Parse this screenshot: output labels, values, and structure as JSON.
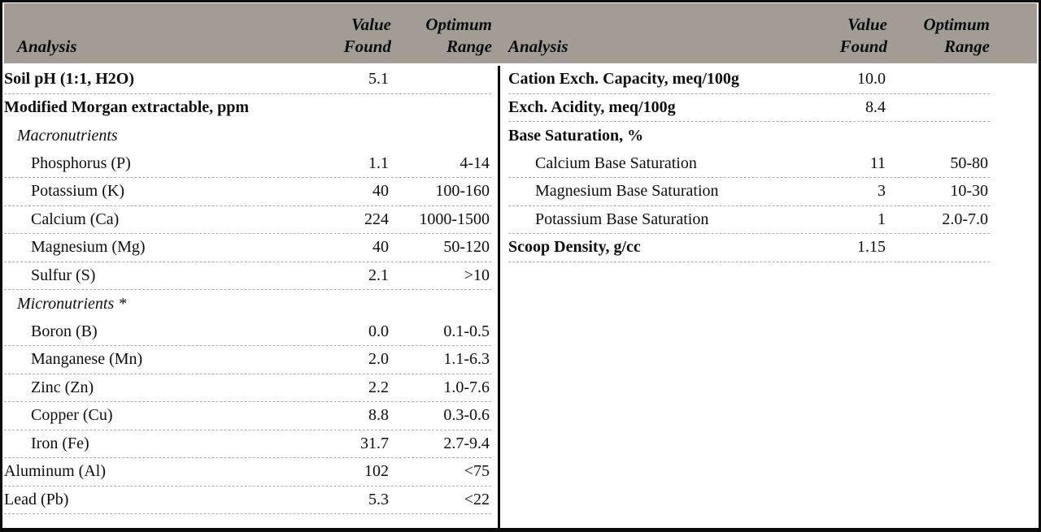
{
  "colors": {
    "header_bg": "#a29c95",
    "border": "#0a0a0a",
    "dash": "#ababab",
    "text": "#0d0d0d"
  },
  "table": {
    "header": {
      "analysis": "Analysis",
      "value_found": "Value\nFound",
      "optimum_range": "Optimum\nRange"
    },
    "left_rows": [
      {
        "label": "Soil pH (1:1, H2O)",
        "value": "5.1",
        "range": "",
        "style": "bold",
        "indent": 0,
        "dash": true
      },
      {
        "label": "Modified Morgan extractable, ppm",
        "value": "",
        "range": "",
        "style": "bold",
        "indent": 0,
        "dash": false
      },
      {
        "label": "Macronutrients",
        "value": "",
        "range": "",
        "style": "italic",
        "indent": 1,
        "dash": false
      },
      {
        "label": "Phosphorus (P)",
        "value": "1.1",
        "range": "4-14",
        "style": "normal",
        "indent": 2,
        "dash": true
      },
      {
        "label": "Potassium (K)",
        "value": "40",
        "range": "100-160",
        "style": "normal",
        "indent": 2,
        "dash": true
      },
      {
        "label": "Calcium (Ca)",
        "value": "224",
        "range": "1000-1500",
        "style": "normal",
        "indent": 2,
        "dash": true
      },
      {
        "label": "Magnesium (Mg)",
        "value": "40",
        "range": "50-120",
        "style": "normal",
        "indent": 2,
        "dash": true
      },
      {
        "label": "Sulfur (S)",
        "value": "2.1",
        "range": ">10",
        "style": "normal",
        "indent": 2,
        "dash": true
      },
      {
        "label": "Micronutrients *",
        "value": "",
        "range": "",
        "style": "italic",
        "indent": 1,
        "dash": false
      },
      {
        "label": "Boron (B)",
        "value": "0.0",
        "range": "0.1-0.5",
        "style": "normal",
        "indent": 2,
        "dash": true
      },
      {
        "label": "Manganese (Mn)",
        "value": "2.0",
        "range": "1.1-6.3",
        "style": "normal",
        "indent": 2,
        "dash": true
      },
      {
        "label": "Zinc (Zn)",
        "value": "2.2",
        "range": "1.0-7.6",
        "style": "normal",
        "indent": 2,
        "dash": true
      },
      {
        "label": "Copper (Cu)",
        "value": "8.8",
        "range": "0.3-0.6",
        "style": "normal",
        "indent": 2,
        "dash": true
      },
      {
        "label": "Iron (Fe)",
        "value": "31.7",
        "range": "2.7-9.4",
        "style": "normal",
        "indent": 2,
        "dash": true
      },
      {
        "label": "Aluminum (Al)",
        "value": "102",
        "range": "<75",
        "style": "normal",
        "indent": 0,
        "dash": true
      },
      {
        "label": "Lead (Pb)",
        "value": "5.3",
        "range": "<22",
        "style": "normal",
        "indent": 0,
        "dash": true
      }
    ],
    "right_rows": [
      {
        "label": "Cation Exch. Capacity, meq/100g",
        "value": "10.0",
        "range": "",
        "style": "bold",
        "indent": 0,
        "dash": true
      },
      {
        "label": "Exch. Acidity, meq/100g",
        "value": "8.4",
        "range": "",
        "style": "bold",
        "indent": 0,
        "dash": true
      },
      {
        "label": "Base Saturation, %",
        "value": "",
        "range": "",
        "style": "bold",
        "indent": 0,
        "dash": false
      },
      {
        "label": "Calcium Base Saturation",
        "value": "11",
        "range": "50-80",
        "style": "normal",
        "indent": 2,
        "dash": true
      },
      {
        "label": "Magnesium Base Saturation",
        "value": "3",
        "range": "10-30",
        "style": "normal",
        "indent": 2,
        "dash": true
      },
      {
        "label": "Potassium Base Saturation",
        "value": "1",
        "range": "2.0-7.0",
        "style": "normal",
        "indent": 2,
        "dash": true
      },
      {
        "label": "Scoop Density, g/cc",
        "value": "1.15",
        "range": "",
        "style": "bold",
        "indent": 0,
        "dash": true
      }
    ]
  }
}
